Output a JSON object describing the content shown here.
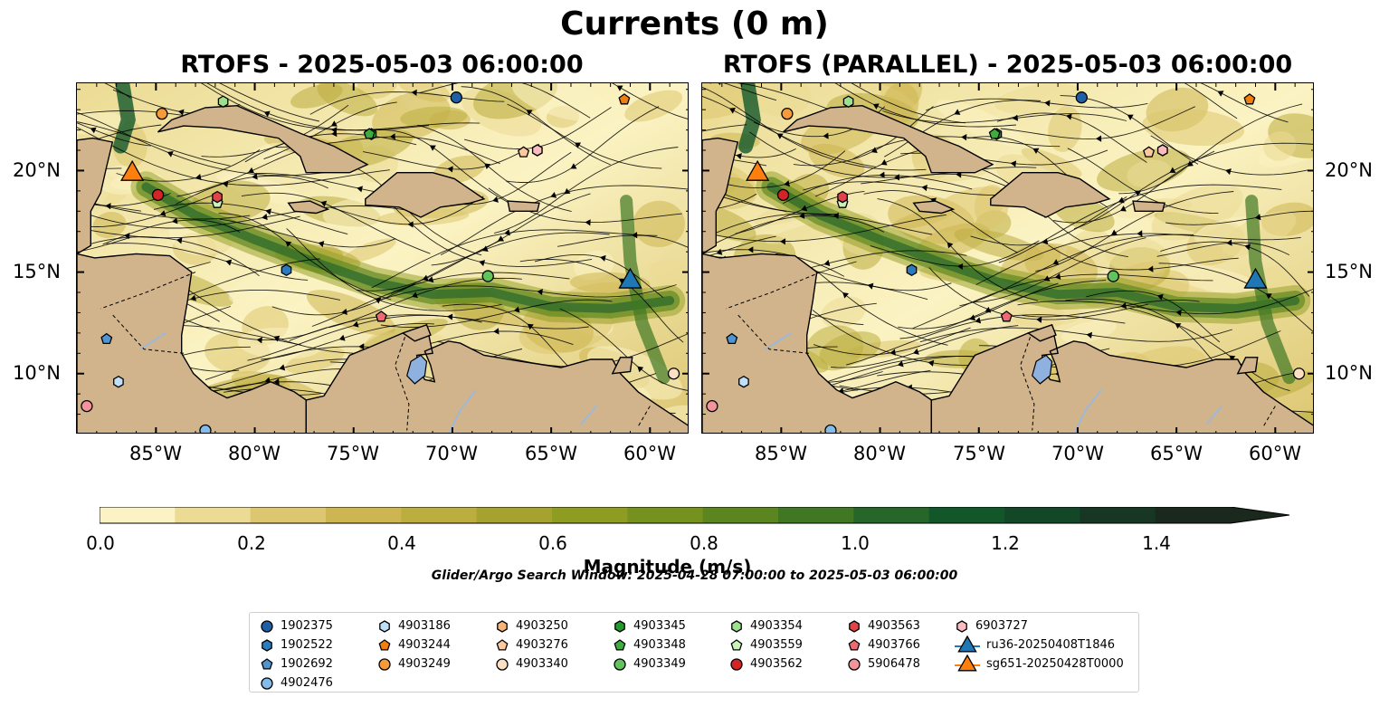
{
  "suptitle": "Currents (0 m)",
  "panels": [
    {
      "title": "RTOFS - 2025-05-03 06:00:00"
    },
    {
      "title": "RTOFS (PARALLEL) - 2025-05-03 06:00:00"
    }
  ],
  "map_extent": {
    "lon": [
      -89,
      -58
    ],
    "lat": [
      7,
      24.3
    ]
  },
  "lon_ticks": [
    "85°W",
    "80°W",
    "75°W",
    "70°W",
    "65°W",
    "60°W"
  ],
  "lat_ticks": [
    "20°N",
    "15°N",
    "10°N"
  ],
  "colorbar": {
    "label": "Magnitude (m/s)",
    "ticks": [
      "0.0",
      "0.2",
      "0.4",
      "0.6",
      "0.8",
      "1.0",
      "1.2",
      "1.4"
    ],
    "range": [
      0,
      1.5
    ],
    "extend": "max",
    "colors": [
      "#fbf3c3",
      "#ebdb94",
      "#dcc670",
      "#cdb652",
      "#bcad3f",
      "#a5a22f",
      "#8f9c22",
      "#76921e",
      "#5b861f",
      "#3f7723",
      "#266729",
      "#11572a",
      "#124728",
      "#173623",
      "#1a281d"
    ]
  },
  "search_window": "Glider/Argo Search Window: 2025-04-28 07:00:00 to 2025-05-03 06:00:00",
  "land_color": "#d2b48c",
  "lake_color": "#8fb1e0",
  "legend": [
    {
      "label": "1902375",
      "shape": "circle",
      "color": "#1f5fa5"
    },
    {
      "label": "1902522",
      "shape": "hexagon",
      "color": "#2b7bbf"
    },
    {
      "label": "1902692",
      "shape": "pentagon",
      "color": "#4f95d2"
    },
    {
      "label": "4902476",
      "shape": "circle",
      "color": "#83bbea"
    },
    {
      "label": "4903186",
      "shape": "hexagon",
      "color": "#bfe0f8"
    },
    {
      "label": "4903244",
      "shape": "pentagon",
      "color": "#f07f10"
    },
    {
      "label": "4903249",
      "shape": "circle",
      "color": "#f69a3a"
    },
    {
      "label": "4903250",
      "shape": "hexagon",
      "color": "#f8b57a"
    },
    {
      "label": "4903276",
      "shape": "pentagon",
      "color": "#fcc99f"
    },
    {
      "label": "4903340",
      "shape": "circle",
      "color": "#fde0c3"
    },
    {
      "label": "4903345",
      "shape": "hexagon",
      "color": "#239a2b"
    },
    {
      "label": "4903348",
      "shape": "pentagon",
      "color": "#3fac40"
    },
    {
      "label": "4903349",
      "shape": "circle",
      "color": "#62c35c"
    },
    {
      "label": "4903354",
      "shape": "hexagon",
      "color": "#9ee08f"
    },
    {
      "label": "4903559",
      "shape": "pentagon",
      "color": "#c8f3bd"
    },
    {
      "label": "4903562",
      "shape": "circle",
      "color": "#d62325"
    },
    {
      "label": "4903563",
      "shape": "hexagon",
      "color": "#e0434a"
    },
    {
      "label": "4903766",
      "shape": "pentagon",
      "color": "#ec6b73"
    },
    {
      "label": "5906478",
      "shape": "circle",
      "color": "#f4939a"
    },
    {
      "label": "6903727",
      "shape": "hexagon",
      "color": "#fbbcc0"
    },
    {
      "label": "ru36-20250408T1846",
      "shape": "triangle",
      "color": "#1f77b4"
    },
    {
      "label": "sg651-20250428T0000",
      "shape": "triangle",
      "color": "#ff7f0e"
    }
  ],
  "markers": [
    {
      "id": "1902375",
      "lon": -69.8,
      "lat": 23.6
    },
    {
      "id": "1902522",
      "lon": -78.4,
      "lat": 15.1
    },
    {
      "id": "1902692",
      "lon": -87.5,
      "lat": 11.7
    },
    {
      "id": "4902476",
      "lon": -82.5,
      "lat": 7.2
    },
    {
      "id": "4903186",
      "lon": -86.9,
      "lat": 9.6
    },
    {
      "id": "4903244",
      "lon": -61.3,
      "lat": 23.5
    },
    {
      "id": "4903249",
      "lon": -84.7,
      "lat": 22.8
    },
    {
      "id": "4903250",
      "lon": -65.7,
      "lat": 21.0
    },
    {
      "id": "4903276",
      "lon": -66.4,
      "lat": 20.9
    },
    {
      "id": "4903340",
      "lon": -58.8,
      "lat": 10.0
    },
    {
      "id": "4903345",
      "lon": -74.1,
      "lat": 21.8
    },
    {
      "id": "4903348",
      "lon": -74.2,
      "lat": 21.8
    },
    {
      "id": "4903349",
      "lon": -68.2,
      "lat": 14.8
    },
    {
      "id": "4903354",
      "lon": -81.6,
      "lat": 23.4
    },
    {
      "id": "4903559",
      "lon": -81.9,
      "lat": 18.4
    },
    {
      "id": "4903562",
      "lon": -84.9,
      "lat": 18.8
    },
    {
      "id": "4903563",
      "lon": -81.9,
      "lat": 18.7
    },
    {
      "id": "4903766",
      "lon": -73.6,
      "lat": 12.8
    },
    {
      "id": "5906478",
      "lon": -88.5,
      "lat": 8.4
    },
    {
      "id": "6903727",
      "lon": -65.7,
      "lat": 21.0
    },
    {
      "id": "ru36-20250408T1846",
      "lon": -61.0,
      "lat": 14.6
    },
    {
      "id": "sg651-20250428T0000",
      "lon": -86.2,
      "lat": 19.9
    }
  ]
}
